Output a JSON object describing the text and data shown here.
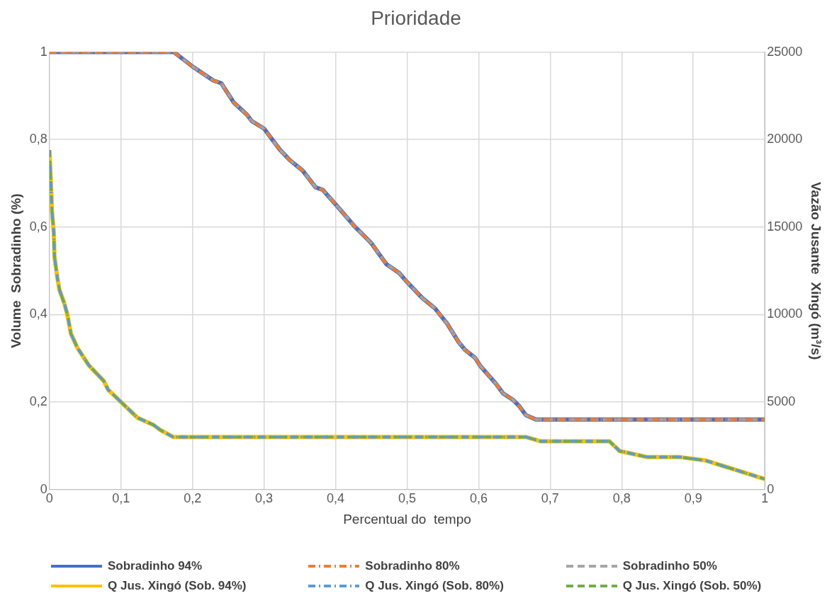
{
  "chart_data": {
    "type": "line",
    "title": "Prioridade",
    "xlabel": "Percentual do  tempo",
    "ylabel": "Volume  Sobradinho (%)",
    "y2label": "Vazão Jusante  Xingó (m³/s)",
    "xlim": [
      0,
      1
    ],
    "xticks": [
      0,
      {
        "value": 0.1,
        "label": "0,1"
      },
      {
        "value": 0.2,
        "label": "0,2"
      },
      {
        "value": 0.3,
        "label": "0,3"
      },
      {
        "value": 0.4,
        "label": "0,4"
      },
      {
        "value": 0.5,
        "label": "0,5"
      },
      {
        "value": 0.6,
        "label": "0,6"
      },
      {
        "value": 0.7,
        "label": "0,7"
      },
      {
        "value": 0.8,
        "label": "0,8"
      },
      {
        "value": 0.9,
        "label": "0,9"
      },
      1
    ],
    "ylim": [
      0,
      1
    ],
    "yticks": [
      0,
      {
        "value": 0.2,
        "label": "0,2"
      },
      {
        "value": 0.4,
        "label": "0,4"
      },
      {
        "value": 0.6,
        "label": "0,6"
      },
      {
        "value": 0.8,
        "label": "0,8"
      },
      1
    ],
    "y2lim": [
      0,
      25000
    ],
    "y2ticks": [
      0,
      5000,
      10000,
      15000,
      20000,
      25000
    ],
    "grid": true,
    "legend": "bottom",
    "marker": "none",
    "series": [
      {
        "name": "Sobradinho 94%",
        "color": "#4472c4",
        "line_style": "solid",
        "x": [
          0,
          0.174,
          0.2,
          0.229,
          0.24,
          0.258,
          0.276,
          0.283,
          0.3,
          0.322,
          0.336,
          0.354,
          0.372,
          0.382,
          0.4,
          0.428,
          0.45,
          0.471,
          0.489,
          0.5,
          0.521,
          0.539,
          0.556,
          0.572,
          0.581,
          0.595,
          0.602,
          0.624,
          0.634,
          0.648,
          0.657,
          0.666,
          0.68,
          1
        ],
        "values": [
          1,
          1,
          0.967,
          0.935,
          0.929,
          0.884,
          0.857,
          0.842,
          0.825,
          0.777,
          0.753,
          0.729,
          0.691,
          0.685,
          0.652,
          0.599,
          0.563,
          0.515,
          0.495,
          0.474,
          0.438,
          0.414,
          0.379,
          0.337,
          0.319,
          0.301,
          0.283,
          0.242,
          0.22,
          0.205,
          0.19,
          0.17,
          0.16,
          0.16
        ]
      },
      {
        "name": "Sobradinho 80%",
        "color": "#ed7d31",
        "line_style": "dashdot",
        "x": [
          0,
          0.174,
          0.2,
          0.229,
          0.24,
          0.258,
          0.276,
          0.283,
          0.3,
          0.322,
          0.336,
          0.354,
          0.372,
          0.382,
          0.4,
          0.428,
          0.45,
          0.471,
          0.489,
          0.5,
          0.521,
          0.539,
          0.556,
          0.572,
          0.581,
          0.595,
          0.602,
          0.624,
          0.634,
          0.648,
          0.657,
          0.666,
          0.68,
          1
        ],
        "values": [
          1,
          1,
          0.967,
          0.935,
          0.929,
          0.884,
          0.857,
          0.842,
          0.825,
          0.777,
          0.753,
          0.729,
          0.691,
          0.685,
          0.652,
          0.599,
          0.563,
          0.515,
          0.495,
          0.474,
          0.438,
          0.414,
          0.379,
          0.337,
          0.319,
          0.301,
          0.283,
          0.242,
          0.22,
          0.205,
          0.19,
          0.17,
          0.16,
          0.16
        ]
      },
      {
        "name": "Sobradinho 50%",
        "color": "#a5a5a5",
        "line_style": "dashed",
        "x": [
          0,
          0.174,
          0.2,
          0.229,
          0.24,
          0.258,
          0.276,
          0.283,
          0.3,
          0.322,
          0.336,
          0.354,
          0.372,
          0.382,
          0.4,
          0.428,
          0.45,
          0.471,
          0.489,
          0.5,
          0.521,
          0.539,
          0.556,
          0.572,
          0.581,
          0.595,
          0.602,
          0.624,
          0.634,
          0.648,
          0.657,
          0.666,
          0.68,
          1
        ],
        "values": [
          1,
          1,
          0.967,
          0.935,
          0.929,
          0.884,
          0.857,
          0.842,
          0.825,
          0.777,
          0.753,
          0.729,
          0.691,
          0.685,
          0.652,
          0.599,
          0.563,
          0.515,
          0.495,
          0.474,
          0.438,
          0.414,
          0.379,
          0.337,
          0.319,
          0.301,
          0.283,
          0.242,
          0.22,
          0.205,
          0.19,
          0.17,
          0.16,
          0.16
        ]
      },
      {
        "name": "Q Jus. Xingó (Sob. 94%)",
        "color": "#ffc000",
        "line_style": "solid",
        "axis": "y2",
        "x": [
          0,
          0.002,
          0.0035,
          0.006,
          0.007,
          0.011,
          0.014,
          0.021,
          0.025,
          0.03,
          0.039,
          0.055,
          0.076,
          0.082,
          0.1,
          0.123,
          0.145,
          0.155,
          0.173,
          0.2,
          0.666,
          0.687,
          0.783,
          0.797,
          0.836,
          0.882,
          0.918,
          0.953,
          1
        ],
        "values": [
          19400,
          17500,
          15900,
          14700,
          13300,
          12100,
          11400,
          10600,
          10000,
          8900,
          8100,
          7100,
          6200,
          5700,
          5000,
          4100,
          3700,
          3400,
          3000,
          3000,
          3000,
          2750,
          2750,
          2200,
          1850,
          1850,
          1650,
          1200,
          600
        ]
      },
      {
        "name": "Q Jus. Xingó (Sob. 80%)",
        "color": "#5b9bd5",
        "line_style": "dashdot",
        "axis": "y2",
        "x": [
          0,
          0.002,
          0.0035,
          0.006,
          0.007,
          0.011,
          0.014,
          0.021,
          0.025,
          0.03,
          0.039,
          0.055,
          0.076,
          0.082,
          0.1,
          0.123,
          0.145,
          0.155,
          0.173,
          0.2,
          0.666,
          0.687,
          0.783,
          0.797,
          0.836,
          0.882,
          0.918,
          0.953,
          1
        ],
        "values": [
          19400,
          17500,
          15900,
          14700,
          13300,
          12100,
          11400,
          10600,
          10000,
          8900,
          8100,
          7100,
          6200,
          5700,
          5000,
          4100,
          3700,
          3400,
          3000,
          3000,
          3000,
          2750,
          2750,
          2200,
          1850,
          1850,
          1650,
          1200,
          600
        ]
      },
      {
        "name": "Q Jus. Xingó (Sob. 50%)",
        "color": "#70ad47",
        "line_style": "dashed",
        "axis": "y2",
        "x": [
          0,
          0.002,
          0.0035,
          0.006,
          0.007,
          0.011,
          0.014,
          0.021,
          0.025,
          0.03,
          0.039,
          0.055,
          0.076,
          0.082,
          0.1,
          0.123,
          0.145,
          0.155,
          0.173,
          0.2,
          0.666,
          0.687,
          0.783,
          0.797,
          0.836,
          0.882,
          0.918,
          0.953,
          1
        ],
        "values": [
          19400,
          17500,
          15900,
          14700,
          13300,
          12100,
          11400,
          10600,
          10000,
          8900,
          8100,
          7100,
          6200,
          5700,
          5000,
          4100,
          3700,
          3400,
          3000,
          3000,
          3000,
          2750,
          2750,
          2200,
          1850,
          1850,
          1650,
          1200,
          600
        ]
      }
    ]
  }
}
